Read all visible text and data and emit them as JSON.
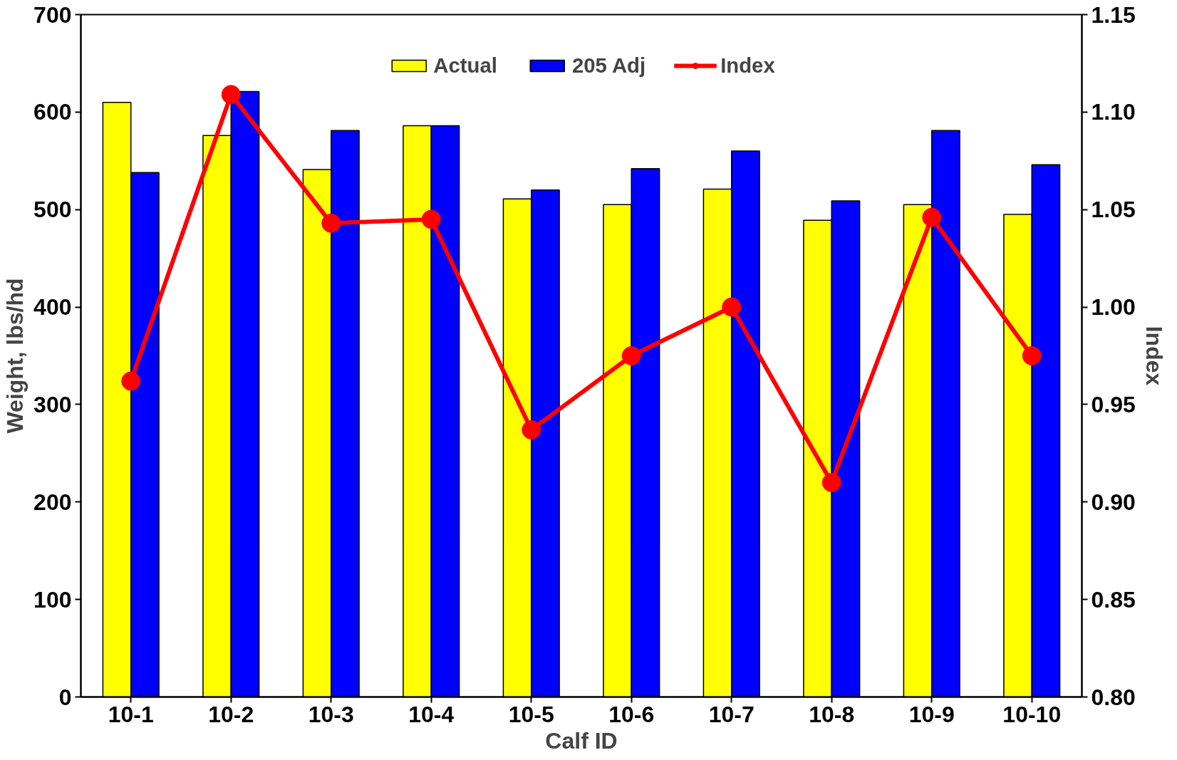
{
  "chart_data": {
    "type": "bar",
    "xlabel": "Calf ID",
    "ylabel": "Weight, lbs/hd",
    "y2label": "Index",
    "categories": [
      "10-1",
      "10-2",
      "10-3",
      "10-4",
      "10-5",
      "10-6",
      "10-7",
      "10-8",
      "10-9",
      "10-10"
    ],
    "series": [
      {
        "name": "Actual",
        "color": "#ffff00",
        "values": [
          610,
          576,
          541,
          586,
          511,
          505,
          521,
          489,
          505,
          495
        ]
      },
      {
        "name": "205 Adj",
        "color": "#0000ff",
        "values": [
          538,
          621,
          581,
          586,
          520,
          542,
          560,
          509,
          581,
          546
        ]
      },
      {
        "name": "Index",
        "type": "line",
        "axis": "y2",
        "color": "#ff0000",
        "marker": "circle",
        "values": [
          0.962,
          1.109,
          1.043,
          1.045,
          0.937,
          0.975,
          1.0,
          0.91,
          1.046,
          0.975
        ]
      }
    ],
    "ylim": [
      0,
      700
    ],
    "yticks": [
      0,
      100,
      200,
      300,
      400,
      500,
      600,
      700
    ],
    "y2lim": [
      0.8,
      1.15
    ],
    "y2ticks": [
      {
        "value": 0.8,
        "label": "0.80"
      },
      {
        "value": 0.85,
        "label": "0.85"
      },
      {
        "value": 0.9,
        "label": "0.90"
      },
      {
        "value": 0.95,
        "label": "0.95"
      },
      {
        "value": 1.0,
        "label": "1.00"
      },
      {
        "value": 1.05,
        "label": "1.05"
      },
      {
        "value": 1.1,
        "label": "1.10"
      },
      {
        "value": 1.15,
        "label": "1.15"
      }
    ],
    "grid": false,
    "legend": "top"
  }
}
